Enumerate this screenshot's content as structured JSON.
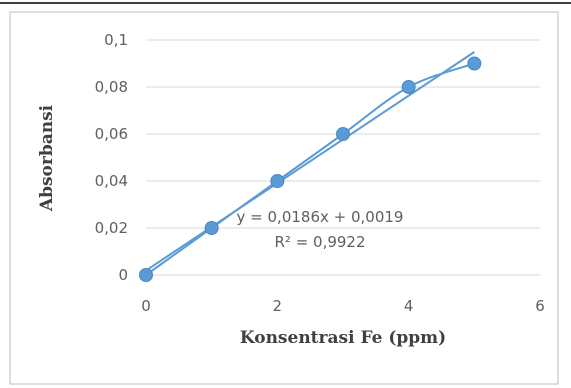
{
  "chart_data": {
    "type": "scatter",
    "title": "",
    "xlabel": "Konsentrasi Fe (ppm)",
    "ylabel": "Absorbansi",
    "xlim": [
      0,
      6
    ],
    "ylim": [
      0,
      0.1
    ],
    "x_ticks": [
      0,
      2,
      4,
      6
    ],
    "x_tick_labels": [
      "0",
      "2",
      "4",
      "6"
    ],
    "y_ticks": [
      0,
      0.02,
      0.04,
      0.06,
      0.08,
      0.1
    ],
    "y_tick_labels": [
      "0",
      "0,02",
      "0,04",
      "0,06",
      "0,08",
      "0,1"
    ],
    "grid": "horizontal",
    "legend": "none",
    "series": [
      {
        "x": [
          0,
          1,
          2,
          3,
          4,
          5
        ],
        "y": [
          0,
          0.02,
          0.04,
          0.06,
          0.08,
          0.09
        ],
        "color": "#5b9bd5",
        "smooth_line": true
      }
    ],
    "trendline": {
      "type": "linear",
      "slope": 0.0186,
      "intercept": 0.0019,
      "x_range": [
        0,
        5
      ],
      "color": "#5b9bd5",
      "equation_label": "y = 0,0186x + 0,0019",
      "r2_label": "R² = 0,9922"
    },
    "colors": {
      "series": "#5b9bd5",
      "grid": "#d9d9d9",
      "text": "#5f5f5f",
      "axis_title": "#404040",
      "border": "#bfbfbf"
    }
  }
}
